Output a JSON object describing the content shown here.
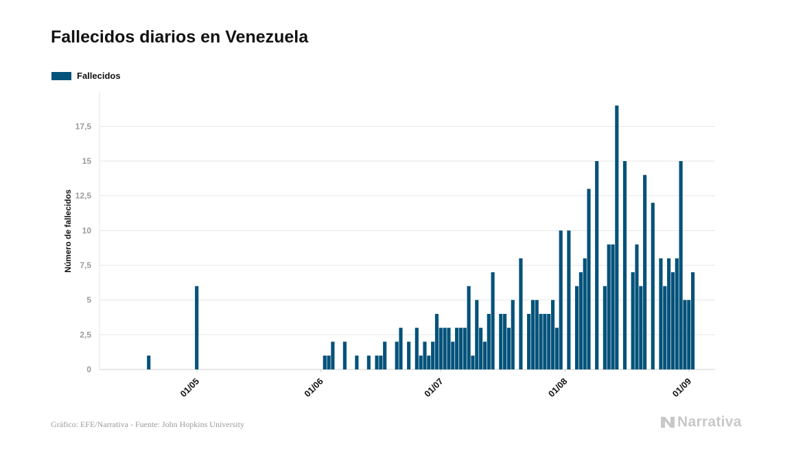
{
  "title": "Fallecidos diarios en Venezuela",
  "legend": {
    "label": "Fallecidos"
  },
  "footer": {
    "source": "Gráfico: EFE/Narrativa - Fuente: John Hopkins University",
    "brand": "Narrativa"
  },
  "colors": {
    "bar": "#03527a",
    "grid": "#e6e6e6",
    "axis_text": "#9a9a9a"
  },
  "chart_data": {
    "type": "bar",
    "ylabel": "Número de fallecidos",
    "ylim": [
      0,
      20
    ],
    "yticks": [
      0,
      2.5,
      5,
      7.5,
      10,
      12.5,
      15,
      17.5
    ],
    "ytick_labels": [
      "0",
      "2,5",
      "5",
      "7,5",
      "10",
      "12,5",
      "15",
      "17,5"
    ],
    "xticks": [
      {
        "date": "2020-05-01",
        "label": "01/05"
      },
      {
        "date": "2020-06-01",
        "label": "01/06"
      },
      {
        "date": "2020-07-01",
        "label": "01/07"
      },
      {
        "date": "2020-08-01",
        "label": "01/08"
      },
      {
        "date": "2020-09-01",
        "label": "01/09"
      }
    ],
    "x_start": "2020-04-14",
    "series": [
      {
        "name": "Fallecidos",
        "values": [
          0,
          0,
          0,
          0,
          0,
          1,
          0,
          0,
          0,
          0,
          0,
          0,
          0,
          0,
          0,
          0,
          0,
          6,
          0,
          0,
          0,
          0,
          0,
          0,
          0,
          0,
          0,
          0,
          0,
          0,
          0,
          0,
          0,
          0,
          0,
          0,
          0,
          0,
          0,
          0,
          0,
          0,
          0,
          0,
          0,
          0,
          0,
          0,
          0,
          1,
          1,
          2,
          0,
          0,
          2,
          0,
          0,
          1,
          0,
          0,
          1,
          0,
          1,
          1,
          2,
          0,
          0,
          2,
          3,
          0,
          2,
          0,
          3,
          1,
          2,
          1,
          2,
          4,
          3,
          3,
          3,
          2,
          3,
          3,
          3,
          6,
          1,
          5,
          3,
          2,
          4,
          7,
          0,
          4,
          4,
          3,
          5,
          0,
          8,
          0,
          4,
          5,
          5,
          4,
          4,
          4,
          5,
          3,
          10,
          0,
          10,
          0,
          6,
          7,
          8,
          13,
          0,
          15,
          0,
          6,
          9,
          9,
          19,
          0,
          15,
          0,
          7,
          9,
          6,
          14,
          0,
          12,
          0,
          8,
          6,
          8,
          7,
          8,
          15,
          5,
          5,
          7
        ]
      }
    ]
  }
}
